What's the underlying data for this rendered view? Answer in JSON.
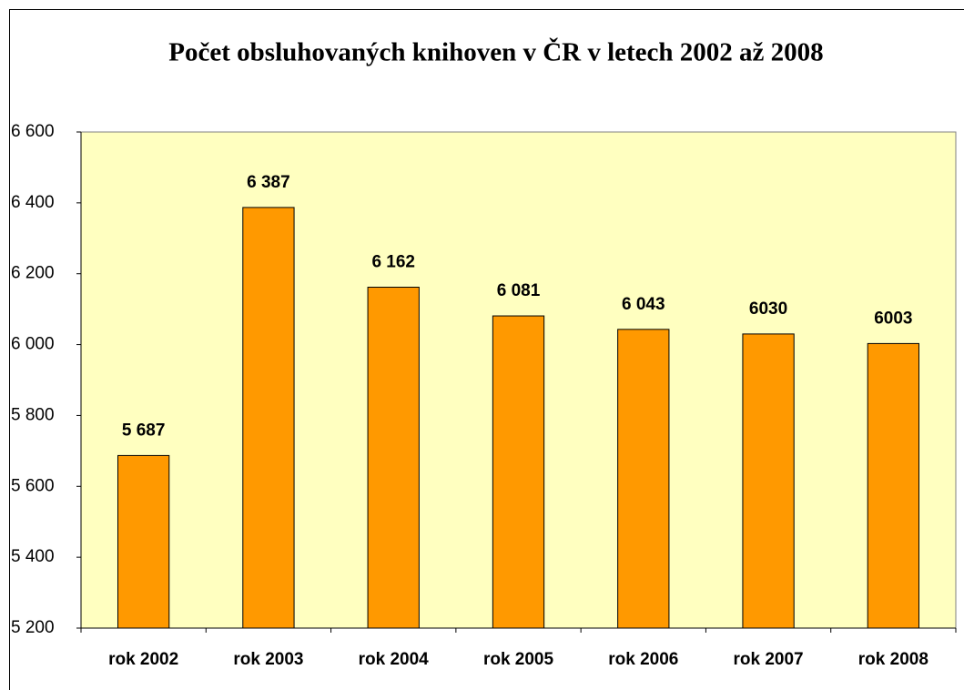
{
  "chart_data": {
    "type": "bar",
    "title": "Počet obsluhovaných knihoven v ČR v letech 2002 až 2008",
    "categories": [
      "rok 2002",
      "rok 2003",
      "rok 2004",
      "rok 2005",
      "rok 2006",
      "rok 2007",
      "rok 2008"
    ],
    "values": [
      5687,
      6387,
      6162,
      6081,
      6043,
      6030,
      6003
    ],
    "value_labels": [
      "5 687",
      "6 387",
      "6 162",
      "6 081",
      "6 043",
      "6030",
      "6003"
    ],
    "color": "#ff9900",
    "ylim": [
      5200,
      6600
    ],
    "yticks": [
      {
        "value": 5200,
        "label": "5 200"
      },
      {
        "value": 5400,
        "label": "5 400"
      },
      {
        "value": 5600,
        "label": "5 600"
      },
      {
        "value": 5800,
        "label": "5 800"
      },
      {
        "value": 6000,
        "label": "6 000"
      },
      {
        "value": 6200,
        "label": "6 200"
      },
      {
        "value": 6400,
        "label": "6 400"
      },
      {
        "value": 6600,
        "label": "6 600"
      }
    ],
    "grid": false
  }
}
